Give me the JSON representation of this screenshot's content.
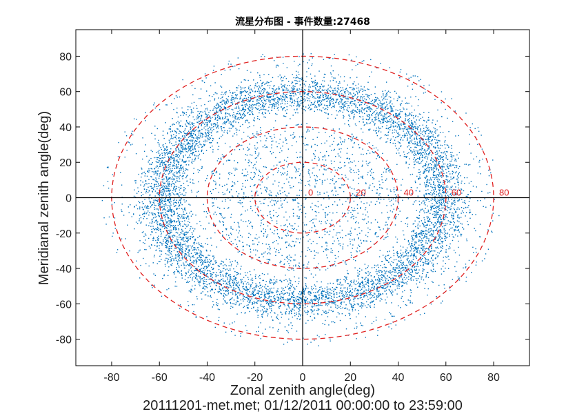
{
  "chart_data": {
    "type": "scatter",
    "title": "流星分布图 - 事件数量:27468",
    "xlabel": "Zonal zenith angle(deg)",
    "ylabel": "Meridianal zenith angle(deg)",
    "footer": "20111201-met.met; 01/12/2011 00:00:00 to 23:59:00",
    "xlim": [
      -95,
      95
    ],
    "ylim": [
      -95,
      95
    ],
    "xticks": [
      -80,
      -60,
      -40,
      -20,
      0,
      20,
      40,
      60,
      80
    ],
    "yticks": [
      -80,
      -60,
      -40,
      -20,
      0,
      20,
      40,
      60,
      80
    ],
    "xtick_labels": [
      "-80",
      "-60",
      "-40",
      "-20",
      "0",
      "20",
      "40",
      "60",
      "80"
    ],
    "ytick_labels": [
      "-80",
      "-60",
      "-40",
      "-20",
      "0",
      "20",
      "40",
      "60",
      "80"
    ],
    "grid": false,
    "event_count": 27468,
    "point_color": "#0072bd",
    "ring_color": "#e0201f",
    "distribution": "points concentrated in an annulus between about 45 and 75 deg zenith angle, sparse inside 40 deg",
    "zenith_rings": [
      20,
      40,
      60,
      80
    ],
    "ring_labels": [
      "0",
      "20",
      "40",
      "60",
      "80"
    ]
  }
}
